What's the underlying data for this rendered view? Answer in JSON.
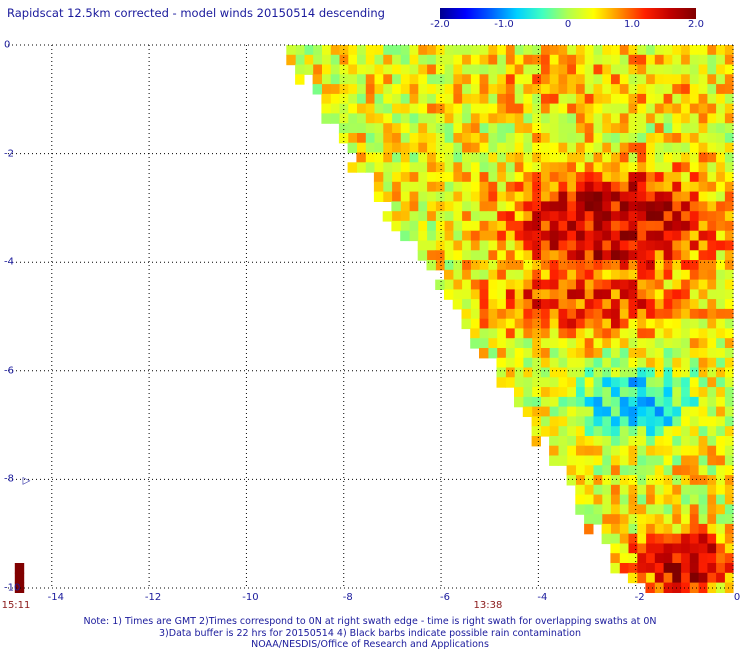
{
  "chart_data": {
    "type": "heatmap",
    "title": "Rapidscat 12.5km corrected - model winds 20150514 descending",
    "xlabel": "",
    "ylabel": "",
    "xlim": [
      -14.9,
      0
    ],
    "ylim": [
      -10,
      0
    ],
    "x_ticks": [
      "-14",
      "-12",
      "-10",
      "-8",
      "-6",
      "-4",
      "-2",
      "0"
    ],
    "x_tick_values": [
      -14,
      -12,
      -10,
      -8,
      -6,
      -4,
      -2,
      0
    ],
    "y_ticks": [
      "0",
      "-2",
      "-4",
      "-6",
      "-8",
      "-10"
    ],
    "y_tick_values": [
      0,
      -2,
      -4,
      -6,
      -8,
      -10
    ],
    "grid": true,
    "colorbar": {
      "min": -2.0,
      "max": 2.0,
      "tick_labels": [
        "-2.0",
        "-1.0",
        "0",
        "1.0",
        "2.0"
      ],
      "tick_values": [
        -2.0,
        -1.0,
        0,
        1.0,
        2.0
      ],
      "colors": [
        "#00008f",
        "#0000ff",
        "#0060ff",
        "#00d0ff",
        "#40ffc0",
        "#b0ff50",
        "#ffff00",
        "#ff9000",
        "#ff2000",
        "#c00000",
        "#800000"
      ]
    },
    "swath_edge_line": [
      [
        -9.3,
        0
      ],
      [
        -2.0,
        -10
      ]
    ],
    "cell_size": [
      0.18,
      0.18
    ],
    "value_regions": [
      {
        "x_range": [
          -6,
          0
        ],
        "y_range": [
          -1.2,
          0
        ],
        "mean": 0.55
      },
      {
        "x_range": [
          -4.5,
          -0.5
        ],
        "y_range": [
          -4.2,
          -2.3
        ],
        "mean": 1.5
      },
      {
        "x_range": [
          -5,
          -1
        ],
        "y_range": [
          -5.3,
          -4.2
        ],
        "mean": 1.15
      },
      {
        "x_range": [
          -3.3,
          -0.8
        ],
        "y_range": [
          -7.2,
          -6.0
        ],
        "mean": -0.6
      },
      {
        "x_range": [
          -2,
          0
        ],
        "y_range": [
          -10,
          -9.0
        ],
        "mean": 1.6
      },
      {
        "x_range": [
          -15,
          -14.6
        ],
        "y_range": [
          -10,
          -9.5
        ],
        "mean": 2.0
      }
    ],
    "times": [
      {
        "label": "15:11",
        "x": -14.9
      },
      {
        "label": "13:38",
        "x": -5.2
      }
    ],
    "annotations": [
      {
        "glyph": "▷",
        "x": -14.6,
        "y": -8.0
      }
    ]
  },
  "notes": [
    "Note: 1) Times are GMT 2)Times correspond to 0N at right swath edge - time is right swath for overlapping swaths at 0N",
    "3)Data buffer is 22 hrs for 20150514 4) Black barbs indicate possible rain contamination",
    "NOAA/NESDIS/Office of Research and Applications"
  ]
}
